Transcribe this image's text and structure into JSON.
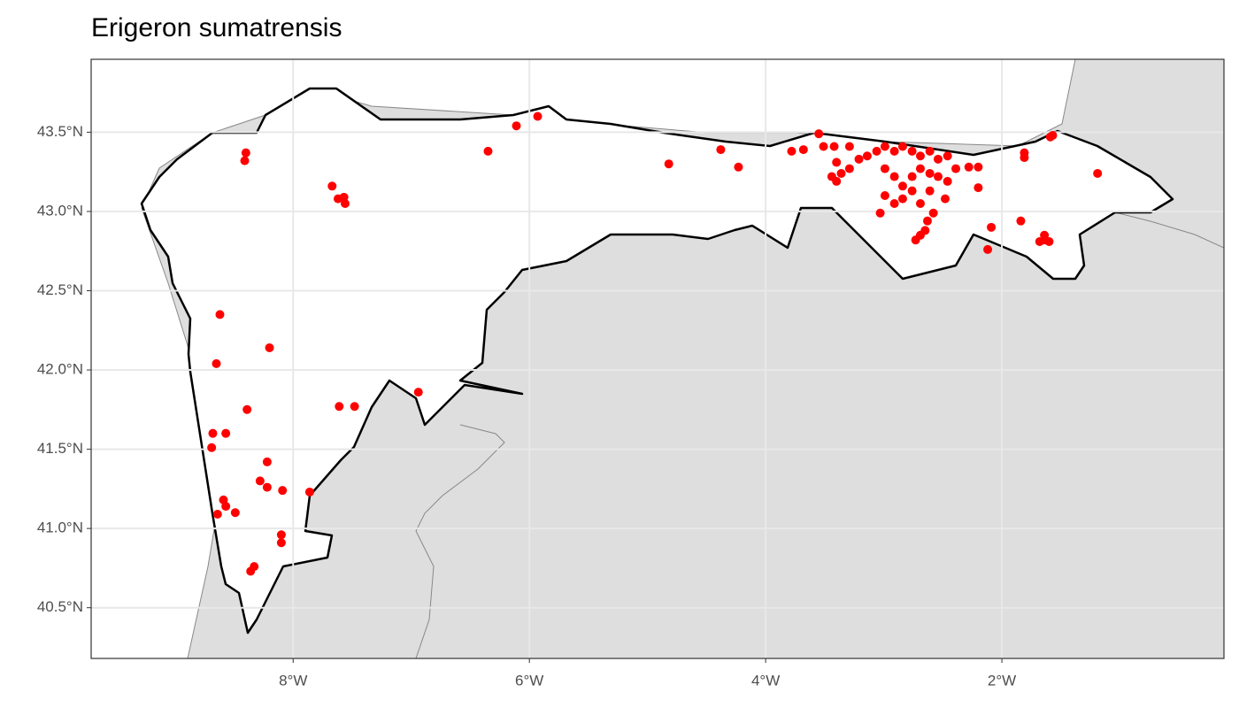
{
  "chart_data": {
    "type": "scatter",
    "title": "Erigeron sumatrensis",
    "color": "#ff0000",
    "grid": true,
    "xlim": [
      -9.71,
      -0.12
    ],
    "ylim": [
      40.18,
      43.96
    ],
    "xticks": [
      {
        "value": -8,
        "label": "8°W"
      },
      {
        "value": -6,
        "label": "6°W"
      },
      {
        "value": -4,
        "label": "4°W"
      },
      {
        "value": -2,
        "label": "2°W"
      }
    ],
    "yticks": [
      {
        "value": 40.5,
        "label": "40.5°N"
      },
      {
        "value": 41.0,
        "label": "41.0°N"
      },
      {
        "value": 41.5,
        "label": "41.5°N"
      },
      {
        "value": 42.0,
        "label": "42.0°N"
      },
      {
        "value": 42.5,
        "label": "42.5°N"
      },
      {
        "value": 43.0,
        "label": "43.0°N"
      },
      {
        "value": 43.5,
        "label": "43.5°N"
      }
    ],
    "x": [
      -8.4,
      -8.41,
      -6.11,
      -5.93,
      -6.35,
      -7.67,
      -7.62,
      -7.57,
      -7.56,
      -4.82,
      -4.38,
      -4.23,
      -3.78,
      -3.68,
      -3.55,
      -3.51,
      -3.42,
      -3.29,
      -3.4,
      -3.44,
      -3.4,
      -3.36,
      -3.29,
      -3.21,
      -3.14,
      -3.06,
      -2.99,
      -2.91,
      -2.84,
      -2.76,
      -2.69,
      -2.61,
      -2.54,
      -2.46,
      -2.99,
      -2.91,
      -2.84,
      -2.76,
      -2.69,
      -2.61,
      -2.54,
      -2.99,
      -2.91,
      -3.03,
      -2.84,
      -2.76,
      -2.69,
      -2.61,
      -2.46,
      -2.39,
      -2.28,
      -2.2,
      -2.2,
      -2.48,
      -2.58,
      -2.63,
      -2.65,
      -2.69,
      -2.73,
      -2.09,
      -2.12,
      -1.84,
      -1.81,
      -1.81,
      -1.59,
      -1.57,
      -1.19,
      -1.64,
      -1.64,
      -1.6,
      -1.68,
      -8.62,
      -8.65,
      -8.2,
      -8.39,
      -8.68,
      -8.57,
      -8.69,
      -8.22,
      -8.28,
      -8.22,
      -8.09,
      -7.86,
      -8.59,
      -8.57,
      -8.49,
      -8.64,
      -8.1,
      -8.1,
      -8.33,
      -8.36,
      -6.94,
      -7.61,
      -7.48
    ],
    "values": [
      43.37,
      43.32,
      43.54,
      43.6,
      43.38,
      43.16,
      43.08,
      43.09,
      43.05,
      43.3,
      43.39,
      43.28,
      43.38,
      43.39,
      43.49,
      43.41,
      43.41,
      43.41,
      43.31,
      43.22,
      43.19,
      43.24,
      43.27,
      43.33,
      43.35,
      43.38,
      43.41,
      43.38,
      43.41,
      43.38,
      43.35,
      43.38,
      43.33,
      43.35,
      43.27,
      43.22,
      43.16,
      43.22,
      43.27,
      43.24,
      43.22,
      43.1,
      43.05,
      42.99,
      43.08,
      43.13,
      43.05,
      43.13,
      43.19,
      43.27,
      43.28,
      43.28,
      43.15,
      43.08,
      42.99,
      42.94,
      42.88,
      42.85,
      42.82,
      42.9,
      42.76,
      42.94,
      43.37,
      43.34,
      43.47,
      43.48,
      43.24,
      42.85,
      42.82,
      42.81,
      42.81,
      42.35,
      42.04,
      42.14,
      41.75,
      41.6,
      41.6,
      41.51,
      41.42,
      41.3,
      41.26,
      41.24,
      41.23,
      41.18,
      41.14,
      41.1,
      41.09,
      40.96,
      40.91,
      40.76,
      40.73,
      41.86,
      41.77,
      41.77
    ]
  }
}
